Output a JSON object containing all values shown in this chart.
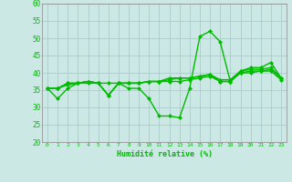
{
  "xlabel": "Humidité relative (%)",
  "xlim": [
    -0.5,
    23.5
  ],
  "ylim": [
    20,
    60
  ],
  "yticks": [
    20,
    25,
    30,
    35,
    40,
    45,
    50,
    55,
    60
  ],
  "xticks": [
    0,
    1,
    2,
    3,
    4,
    5,
    6,
    7,
    8,
    9,
    10,
    11,
    12,
    13,
    14,
    15,
    16,
    17,
    18,
    19,
    20,
    21,
    22,
    23
  ],
  "bg_color": "#cce8e4",
  "grid_color": "#aacccc",
  "line_color": "#00bb00",
  "line_width": 1.0,
  "marker": "D",
  "marker_size": 2.0,
  "series": [
    [
      35.5,
      32.5,
      35.5,
      37.0,
      37.5,
      37.0,
      33.5,
      37.0,
      35.5,
      35.5,
      32.5,
      27.5,
      27.5,
      27.0,
      35.5,
      50.5,
      52.0,
      49.0,
      37.5,
      40.5,
      41.5,
      41.5,
      43.0,
      38.5
    ],
    [
      35.5,
      35.5,
      37.0,
      37.0,
      37.0,
      37.0,
      37.0,
      37.0,
      37.0,
      37.0,
      37.5,
      37.5,
      37.5,
      37.5,
      38.0,
      38.5,
      39.0,
      37.5,
      37.5,
      40.0,
      40.0,
      40.5,
      40.5,
      38.0
    ],
    [
      35.5,
      35.5,
      37.0,
      37.0,
      37.5,
      37.0,
      33.5,
      37.0,
      37.0,
      37.0,
      37.5,
      37.5,
      38.0,
      38.5,
      38.5,
      39.0,
      39.5,
      37.5,
      37.5,
      40.0,
      40.5,
      40.5,
      41.0,
      38.5
    ],
    [
      35.5,
      35.5,
      36.5,
      37.0,
      37.5,
      37.0,
      33.5,
      37.0,
      37.0,
      37.0,
      37.5,
      37.5,
      38.5,
      38.5,
      38.5,
      39.0,
      39.5,
      38.0,
      38.0,
      40.5,
      41.0,
      41.0,
      41.5,
      38.5
    ]
  ]
}
